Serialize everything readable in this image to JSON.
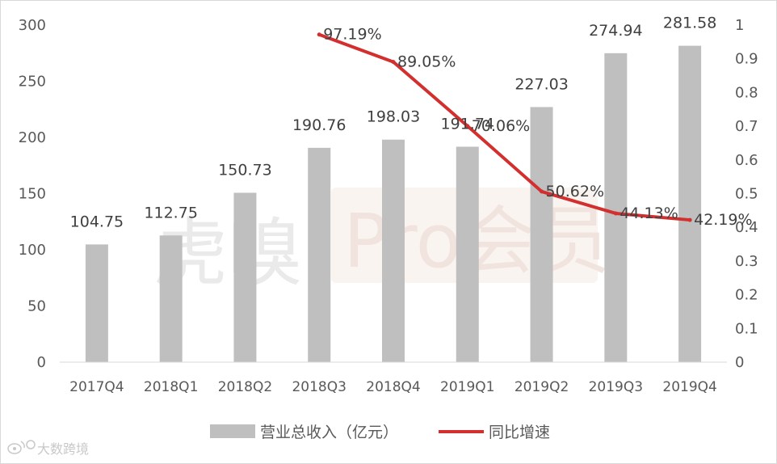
{
  "chart_data": {
    "type": "bar",
    "categories": [
      "2017Q4",
      "2018Q1",
      "2018Q2",
      "2018Q3",
      "2018Q4",
      "2019Q1",
      "2019Q2",
      "2019Q3",
      "2019Q4"
    ],
    "series": [
      {
        "name": "营业总收入（亿元）",
        "type": "bar",
        "axis": "left",
        "color": "#bfbfbf",
        "values": [
          104.75,
          112.75,
          150.73,
          190.76,
          198.03,
          191.74,
          227.03,
          274.94,
          281.58
        ],
        "labels": [
          "104.75",
          "112.75",
          "150.73",
          "190.76",
          "198.03",
          "191.74",
          "227.03",
          "274.94",
          "281.58"
        ]
      },
      {
        "name": "同比增速",
        "type": "line",
        "axis": "right",
        "color": "#d32f2f",
        "values": [
          null,
          null,
          null,
          0.9719,
          0.8905,
          0.7006,
          0.5062,
          0.4413,
          0.4219
        ],
        "labels": [
          "",
          "",
          "",
          "97.19%",
          "89.05%",
          "70.06%",
          "50.62%",
          "44.13%",
          "42.19%"
        ]
      }
    ],
    "y_left": {
      "min": 0,
      "max": 300,
      "ticks": [
        0,
        50,
        100,
        150,
        200,
        250,
        300
      ]
    },
    "y_right": {
      "min": 0,
      "max": 1,
      "ticks": [
        "0",
        "0.1",
        "0.2",
        "0.3",
        "0.4",
        "0.5",
        "0.6",
        "0.7",
        "0.8",
        "0.9",
        "1"
      ]
    },
    "legend": {
      "position": "bottom"
    },
    "grid": false
  },
  "watermark": {
    "text1": "虎嗅",
    "text2": "Pro会员"
  },
  "credit": {
    "icon": "weibo-icon",
    "text": "大数跨境"
  }
}
